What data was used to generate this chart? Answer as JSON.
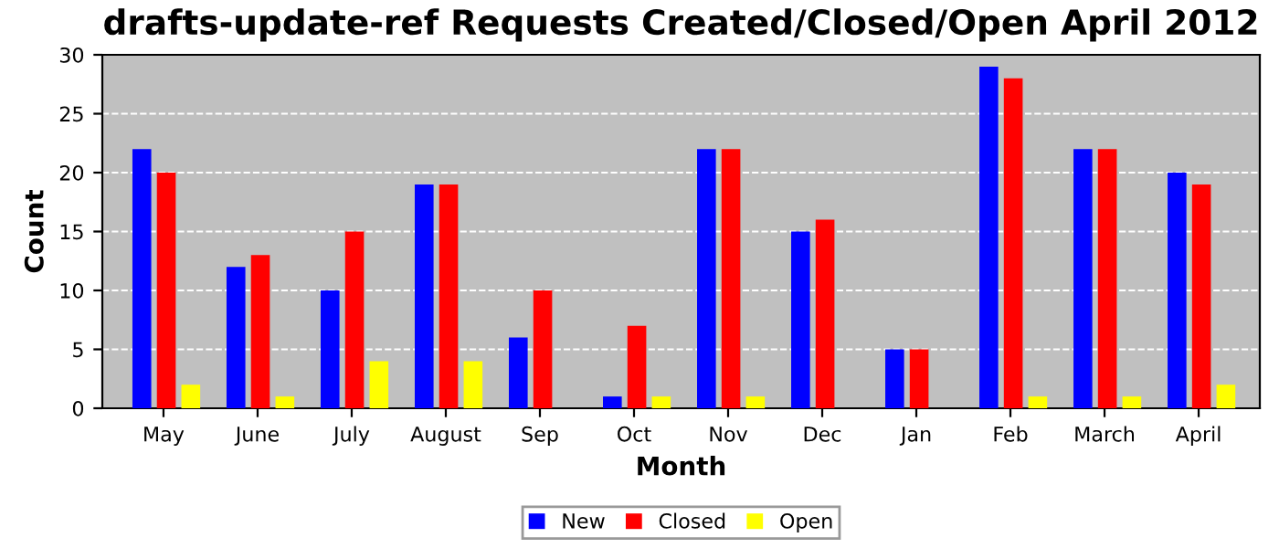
{
  "chart_data": {
    "type": "bar",
    "title": "drafts-update-ref Requests Created/Closed/Open April 2012",
    "xlabel": "Month",
    "ylabel": "Count",
    "categories": [
      "May",
      "June",
      "July",
      "August",
      "Sep",
      "Oct",
      "Nov",
      "Dec",
      "Jan",
      "Feb",
      "March",
      "April"
    ],
    "series": [
      {
        "name": "New",
        "color": "#0000ff",
        "values": [
          22,
          12,
          10,
          19,
          6,
          1,
          22,
          15,
          5,
          29,
          22,
          20
        ]
      },
      {
        "name": "Closed",
        "color": "#ff0000",
        "values": [
          20,
          13,
          15,
          19,
          10,
          7,
          22,
          16,
          5,
          28,
          22,
          19
        ]
      },
      {
        "name": "Open",
        "color": "#ffff00",
        "values": [
          2,
          1,
          4,
          4,
          0,
          1,
          1,
          0,
          0,
          1,
          1,
          2
        ]
      }
    ],
    "ylim": [
      0,
      30
    ],
    "yticks": [
      0,
      5,
      10,
      15,
      20,
      25,
      30
    ],
    "grid": "y",
    "legend": "bottom"
  }
}
